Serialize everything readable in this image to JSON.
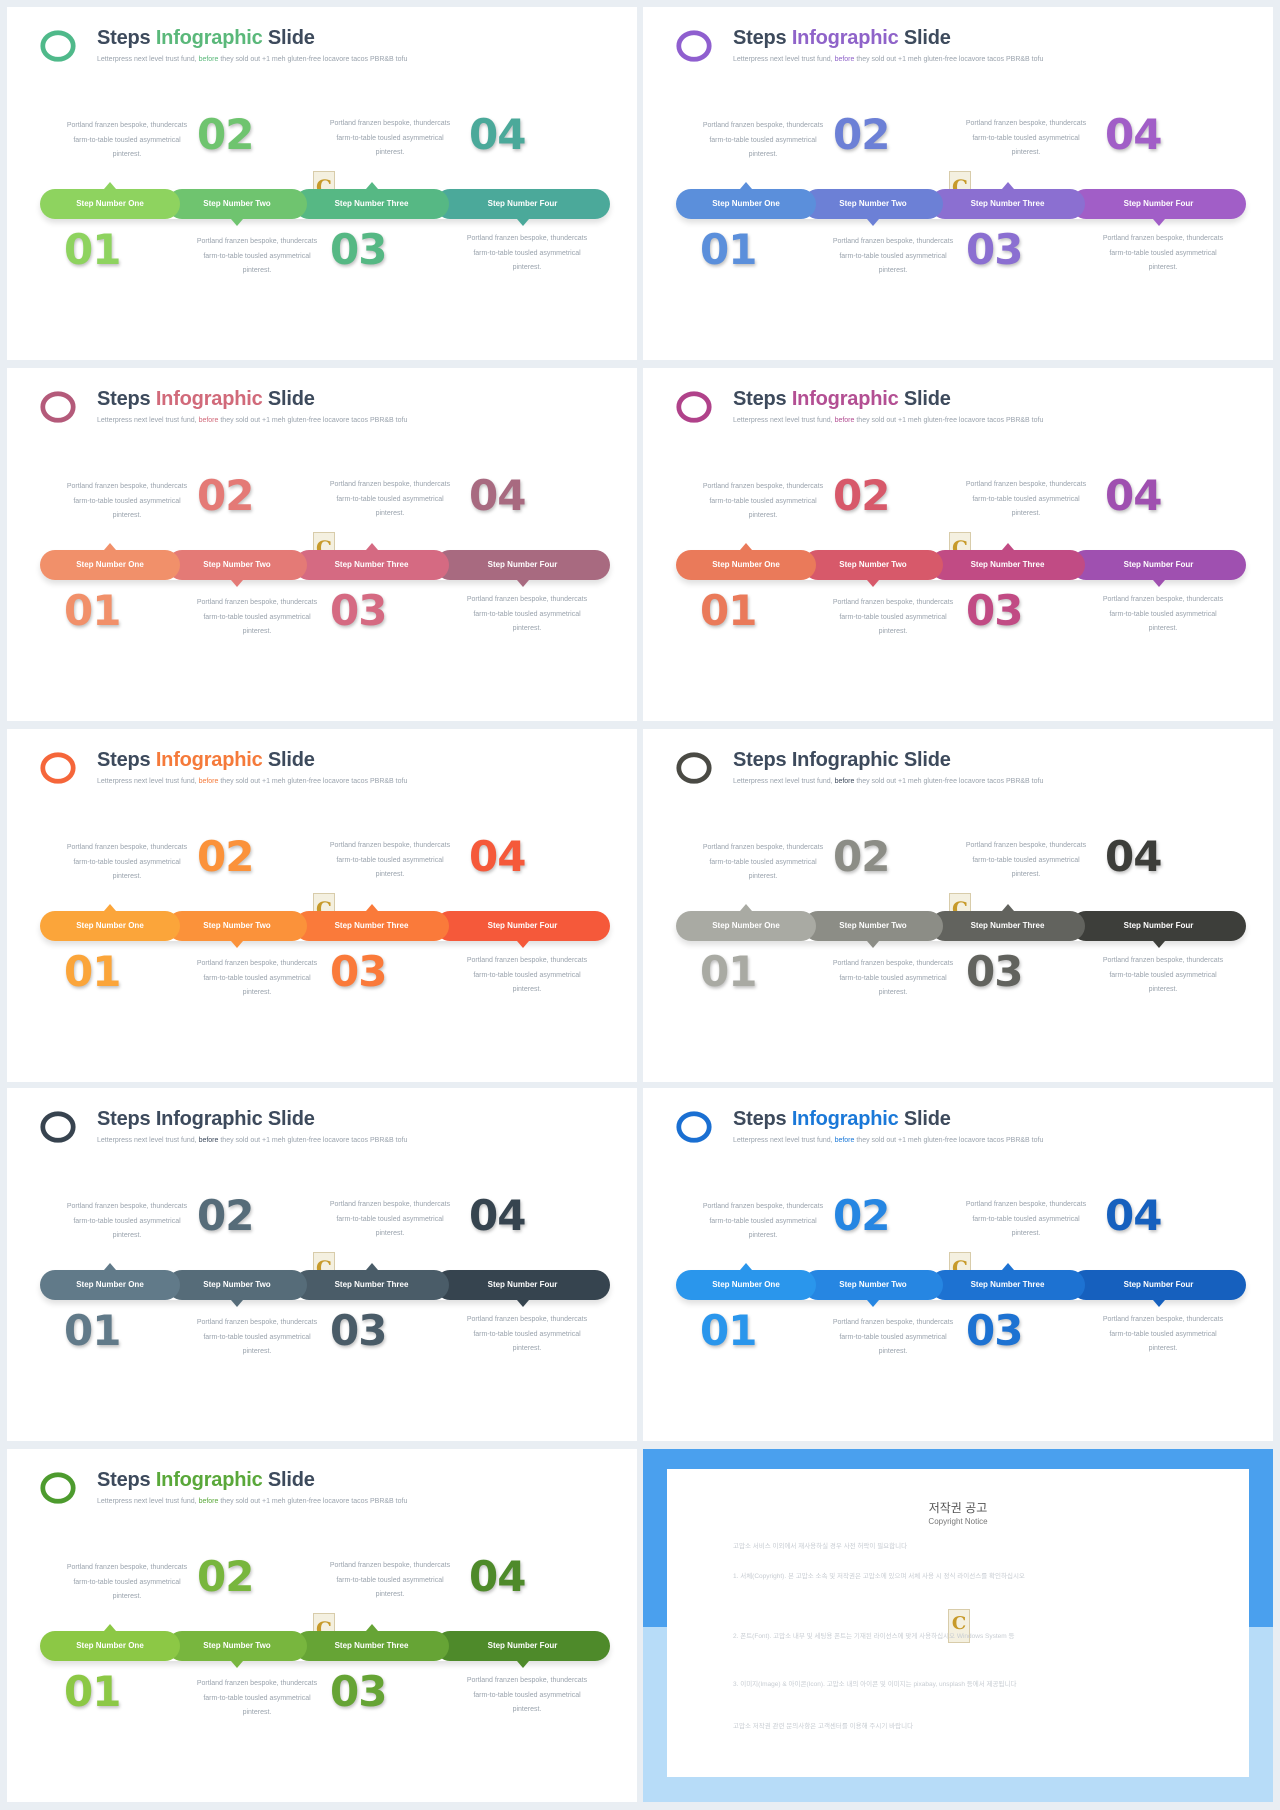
{
  "slide_text": {
    "title_1": "Steps ",
    "title_2": "Infographic",
    "title_3": " Slide",
    "subtitle_1": "Letterpress next level trust fund, ",
    "subtitle_2": "before",
    "subtitle_3": " they sold out +1 meh gluten-free locavore tacos PBR&B tofu",
    "step_labels": [
      "Step Number One",
      "Step Number Two",
      "Step Number Three",
      "Step Number Four"
    ],
    "step_numbers": [
      "01",
      "02",
      "03",
      "04"
    ],
    "desc_line_1": "Portland franzen bespoke, thundercats",
    "desc_line_2": "farm-to-table tousled asymmetrical",
    "desc_line_3": "pinterest.",
    "logo_letter": "C"
  },
  "themes": [
    {
      "accent": "#5ab87a",
      "ring": "#4fb98a",
      "colors": [
        "#8ed35f",
        "#6fc46f",
        "#56b884",
        "#4ba99a"
      ]
    },
    {
      "accent": "#8f63c9",
      "ring": "#8f5fcf",
      "colors": [
        "#5b8fdb",
        "#6c80d6",
        "#8b6fd1",
        "#a15ec7"
      ]
    },
    {
      "accent": "#d16a7a",
      "ring": "#b45a7a",
      "colors": [
        "#f1906a",
        "#e47a76",
        "#d56a82",
        "#a86a80"
      ]
    },
    {
      "accent": "#b34f93",
      "ring": "#b0428a",
      "colors": [
        "#ea7a5a",
        "#d7596a",
        "#c14b84",
        "#9f50b0"
      ]
    },
    {
      "accent": "#f57a3a",
      "ring": "#f5663a",
      "colors": [
        "#fba53a",
        "#fb923a",
        "#fa7a3a",
        "#f5593a"
      ]
    },
    {
      "accent": "#3d4a5c",
      "ring": "#4a4a44",
      "colors": [
        "#a9aaa3",
        "#8c8d86",
        "#62635e",
        "#3d3e3a"
      ]
    },
    {
      "accent": "#3d4a5c",
      "ring": "#37434f",
      "colors": [
        "#617a89",
        "#566c79",
        "#4a5c68",
        "#36444f"
      ]
    },
    {
      "accent": "#1a78d8",
      "ring": "#1a6fd2",
      "colors": [
        "#2a96ec",
        "#2686e2",
        "#1d72d2",
        "#1660be"
      ]
    },
    {
      "accent": "#5aa83a",
      "ring": "#4d9b2e",
      "colors": [
        "#8cc845",
        "#78b63e",
        "#66a435",
        "#4e8a2a"
      ]
    }
  ],
  "notice": {
    "title": "저작권 공고",
    "subtitle": "Copyright Notice",
    "paragraphs": [
      "고맙소 서비스 이외에서 재사용하실 경우 사전 허락이 필요합니다",
      "1. 서체(Copyright). 본 고맙소 소속 및 저작권은 고맙소에 있으며 서체 사용 시 정식 라이선스를 확인하십시오",
      "2. 폰트(Font). 고맙소 내부 및 세팅용 폰트는 기재된 라이선스에 맞게 사용하십시오 Windows System 등",
      "3. 이미지(Image) & 아이콘(Icon). 고맙소 내의 아이콘 및 이미지는 pixabay, unsplash 등에서 제공됩니다",
      "고맙소 저작권 관련 문의사항은 고객센터를 이용해 주시기 바랍니다"
    ]
  }
}
